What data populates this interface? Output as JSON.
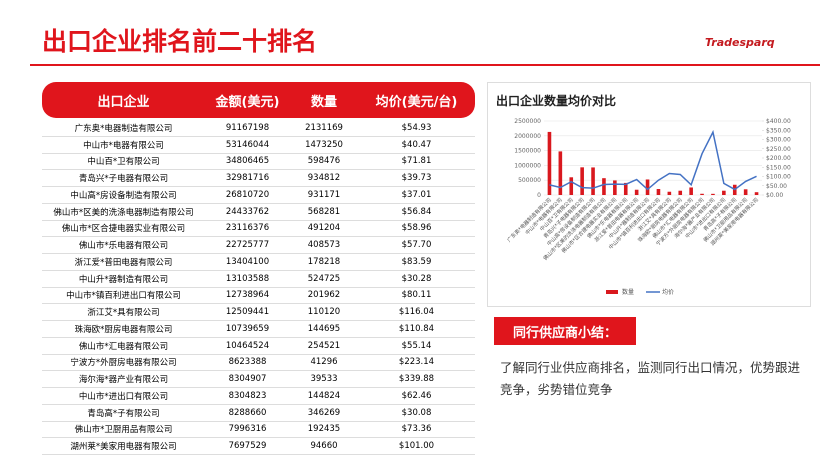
{
  "header": {
    "title": "出口企业排名前二十排名",
    "logo": "Tradesparq"
  },
  "table": {
    "columns": [
      "出口企业",
      "金额(美元)",
      "数量",
      "均价(美元/台)"
    ],
    "rows": [
      [
        "广东奥*电器制造有限公司",
        "91167198",
        "2131169",
        "$54.93"
      ],
      [
        "中山市*电器有限公司",
        "53146044",
        "1473250",
        "$40.47"
      ],
      [
        "中山百*卫有限公司",
        "34806465",
        "598476",
        "$71.81"
      ],
      [
        "青岛兴*子电器有限公司",
        "32981716",
        "934812",
        "$39.73"
      ],
      [
        "中山高*房设备制造有限公司",
        "26810720",
        "931171",
        "$37.01"
      ],
      [
        "佛山市*区美的洗涤电器制造有限公司",
        "24433762",
        "568281",
        "$56.84"
      ],
      [
        "佛山市*区合捷电器实业有限公司",
        "23116376",
        "491204",
        "$58.96"
      ],
      [
        "佛山市*乐电器有限公司",
        "22725777",
        "408573",
        "$57.70"
      ],
      [
        "浙江爱*普田电器有限公司",
        "13404100",
        "178218",
        "$83.59"
      ],
      [
        "中山升*器制造有限公司",
        "13103588",
        "524725",
        "$30.28"
      ],
      [
        "中山市*镇百利进出口有限公司",
        "12738964",
        "201962",
        "$80.11"
      ],
      [
        "浙江艾*具有限公司",
        "12509441",
        "110120",
        "$116.04"
      ],
      [
        "珠海欧*厨房电器有限公司",
        "10739659",
        "144695",
        "$110.84"
      ],
      [
        "佛山市*汇电器有限公司",
        "10464524",
        "254521",
        "$55.14"
      ],
      [
        "宁波方*外厨房电器有限公司",
        "8623388",
        "41296",
        "$223.14"
      ],
      [
        "海尔海*器产业有限公司",
        "8304907",
        "39533",
        "$339.88"
      ],
      [
        "中山市*进出口有限公司",
        "8304823",
        "144824",
        "$62.46"
      ],
      [
        "青岛高*子有限公司",
        "8288660",
        "346269",
        "$30.08"
      ],
      [
        "佛山市*卫厨用品有限公司",
        "7996316",
        "192435",
        "$73.36"
      ],
      [
        "湖州莱*美家用电器有限公司",
        "7697529",
        "94660",
        "$101.00"
      ]
    ]
  },
  "chart_data": {
    "type": "bar-line",
    "title": "出口企业数量均价对比",
    "categories": [
      "广东奥*电器制造有限公司",
      "中山市*电器有限公司",
      "中山百*卫有限公司",
      "青岛兴*子电器有限公司",
      "中山高*房设备制造有限公司",
      "佛山市*区美的洗涤电器制造有限公司",
      "佛山市*区合捷电器实业有限公司",
      "佛山市*乐电器有限公司",
      "浙江爱*普田电器有限公司",
      "中山升*器制造有限公司",
      "中山市*镇百利进出口有限公司",
      "浙江艾*具有限公司",
      "珠海欧*厨房电器有限公司",
      "佛山市*汇电器有限公司",
      "宁波方*外厨房电器有限公司",
      "海尔海*器产业有限公司",
      "中山市*进出口有限公司",
      "青岛高*子有限公司",
      "佛山市*卫厨用品有限公司",
      "湖州莱*美家用电器有限公司"
    ],
    "series": [
      {
        "name": "数量",
        "color": "#d9181e",
        "kind": "bar",
        "values": [
          2131169,
          1473250,
          598476,
          934812,
          931171,
          568281,
          491204,
          408573,
          178218,
          524725,
          201962,
          110120,
          144695,
          254521,
          41296,
          39533,
          144824,
          346269,
          192435,
          94660
        ]
      },
      {
        "name": "均价",
        "color": "#4472c4",
        "kind": "line",
        "axis": "y2",
        "values": [
          54.93,
          40.47,
          71.81,
          39.73,
          37.01,
          56.84,
          58.96,
          57.7,
          83.59,
          30.28,
          80.11,
          116.04,
          110.84,
          55.14,
          223.14,
          339.88,
          62.46,
          30.08,
          73.36,
          101.0
        ]
      }
    ],
    "ylim": [
      0,
      2500000
    ],
    "yticks": [
      0,
      500000,
      1000000,
      1500000,
      2000000,
      2500000
    ],
    "y2lim": [
      0,
      400
    ],
    "y2ticks": [
      {
        "value": 0,
        "label": "$0.00"
      },
      {
        "value": 50,
        "label": "$50.00"
      },
      {
        "value": 100,
        "label": "$100.00"
      },
      {
        "value": 150,
        "label": "$150.00"
      },
      {
        "value": 200,
        "label": "$200.00"
      },
      {
        "value": 250,
        "label": "$250.00"
      },
      {
        "value": 300,
        "label": "$300.00"
      },
      {
        "value": 350,
        "label": "$350.00"
      },
      {
        "value": 400,
        "label": "$400.00"
      }
    ],
    "grid": true,
    "legend": "bottom"
  },
  "summary": {
    "heading": "同行供应商小结：",
    "text": "了解同行业供应商排名，监测同行出口情况，优势跟进竞争，劣势错位竞争"
  }
}
